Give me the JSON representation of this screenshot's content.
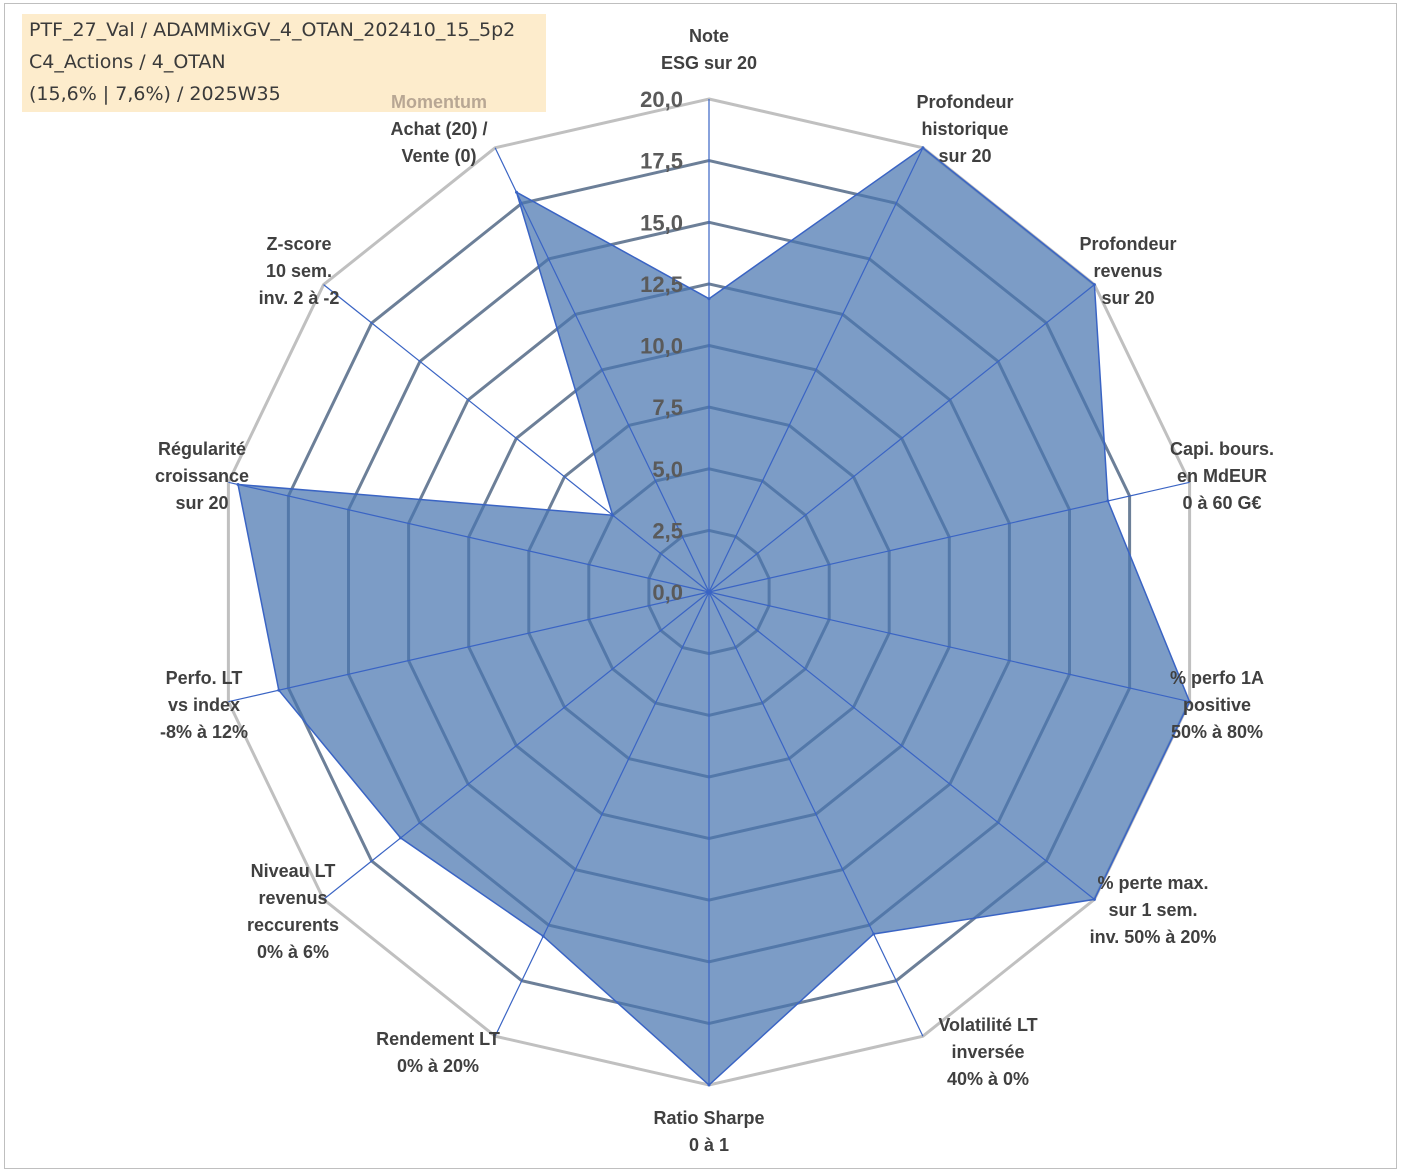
{
  "info": {
    "line1": "PTF_27_Val / ADAMMixGV_4_OTAN_202410_15_5p2",
    "line2": "C4_Actions / 4_OTAN",
    "line3": "(15,6% | 7,6%) / 2025W35"
  },
  "chart_data": {
    "type": "radar",
    "rlim": [
      0,
      20
    ],
    "ticks": [
      "0,0",
      "2,5",
      "5,0",
      "7,5",
      "10,0",
      "12,5",
      "15,0",
      "17,5",
      "20,0"
    ],
    "tick_values": [
      0,
      2.5,
      5,
      7.5,
      10,
      12.5,
      15,
      17.5,
      20
    ],
    "grid": true,
    "axes": [
      {
        "lines": [
          "Note",
          "ESG sur 20"
        ]
      },
      {
        "lines": [
          "Profondeur",
          "historique",
          "sur 20"
        ]
      },
      {
        "lines": [
          "Profondeur",
          "revenus",
          "sur 20"
        ]
      },
      {
        "lines": [
          "Capi. bours.",
          "en MdEUR",
          "0 à 60 G€"
        ]
      },
      {
        "lines": [
          "% perfo 1A",
          "positive",
          "50% à 80%"
        ]
      },
      {
        "lines": [
          "% perte max.",
          "sur 1 sem.",
          "inv. 50% à 20%"
        ]
      },
      {
        "lines": [
          "Volatilité LT",
          "inversée",
          "40% à 0%"
        ]
      },
      {
        "lines": [
          "Ratio Sharpe",
          "0 à 1"
        ]
      },
      {
        "lines": [
          "Rendement LT",
          "0% à 20%"
        ]
      },
      {
        "lines": [
          "Niveau LT",
          "revenus",
          "reccurents",
          "0% à 6%"
        ]
      },
      {
        "lines": [
          "Perfo. LT",
          "vs index",
          "-8% à 12%"
        ]
      },
      {
        "lines": [
          "Régularité",
          "croissance",
          "sur 20"
        ]
      },
      {
        "lines": [
          "Z-score",
          "10 sem.",
          "inv. 2 à -2"
        ]
      },
      {
        "lines": [
          "Momentum",
          "Achat (20) /",
          "Vente (0)"
        ],
        "accent_first_line": true
      }
    ],
    "series": [
      {
        "values": [
          11.9,
          20.0,
          20.0,
          16.6,
          20.0,
          20.0,
          15.4,
          20.0,
          15.5,
          16.0,
          17.9,
          19.6,
          5.0,
          18.0
        ],
        "color": "#4a76b0"
      }
    ],
    "colors": {
      "fill": "#4a76b0",
      "fill_opacity": "0.72",
      "line": "#3a64c4",
      "grid": "#c0c0c0",
      "inner_grid": "#6c7f98",
      "spoke": "#3a64c4",
      "info_box": "#fdeccc",
      "accent_label": "#b8a794"
    }
  }
}
